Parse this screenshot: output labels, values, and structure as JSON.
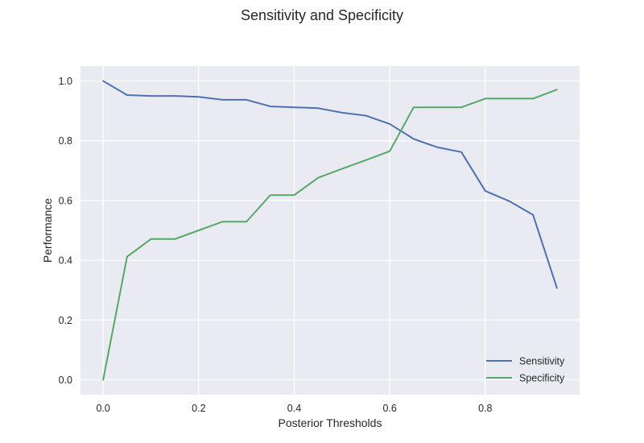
{
  "chart_data": {
    "type": "line",
    "title": "Sensitivity and Specificity",
    "xlabel": "Posterior Thresholds",
    "ylabel": "Performance",
    "xlim": [
      -0.0475,
      0.9975
    ],
    "ylim": [
      -0.05,
      1.05
    ],
    "xticks": [
      0.0,
      0.2,
      0.4,
      0.6,
      0.8
    ],
    "xtick_labels": [
      "0.0",
      "0.2",
      "0.4",
      "0.6",
      "0.8"
    ],
    "yticks": [
      0.0,
      0.2,
      0.4,
      0.6,
      0.8,
      1.0
    ],
    "ytick_labels": [
      "0.0",
      "0.2",
      "0.4",
      "0.6",
      "0.8",
      "1.0"
    ],
    "grid": true,
    "legend_position": "lower-right",
    "x": [
      0.0,
      0.05,
      0.1,
      0.15,
      0.2,
      0.25,
      0.3,
      0.35,
      0.4,
      0.45,
      0.5,
      0.55,
      0.6,
      0.65,
      0.7,
      0.75,
      0.8,
      0.85,
      0.9,
      0.95
    ],
    "series": [
      {
        "name": "Sensitivity",
        "color": "#4c72b0",
        "values": [
          1.0,
          0.953,
          0.95,
          0.95,
          0.947,
          0.937,
          0.937,
          0.915,
          0.912,
          0.909,
          0.894,
          0.884,
          0.856,
          0.806,
          0.778,
          0.762,
          0.632,
          0.598,
          0.552,
          0.307
        ]
      },
      {
        "name": "Specificity",
        "color": "#55a868",
        "values": [
          0.0,
          0.412,
          0.471,
          0.471,
          0.5,
          0.529,
          0.529,
          0.618,
          0.618,
          0.676,
          0.706,
          0.735,
          0.765,
          0.912,
          0.912,
          0.912,
          0.941,
          0.941,
          0.941,
          0.971
        ]
      }
    ]
  }
}
